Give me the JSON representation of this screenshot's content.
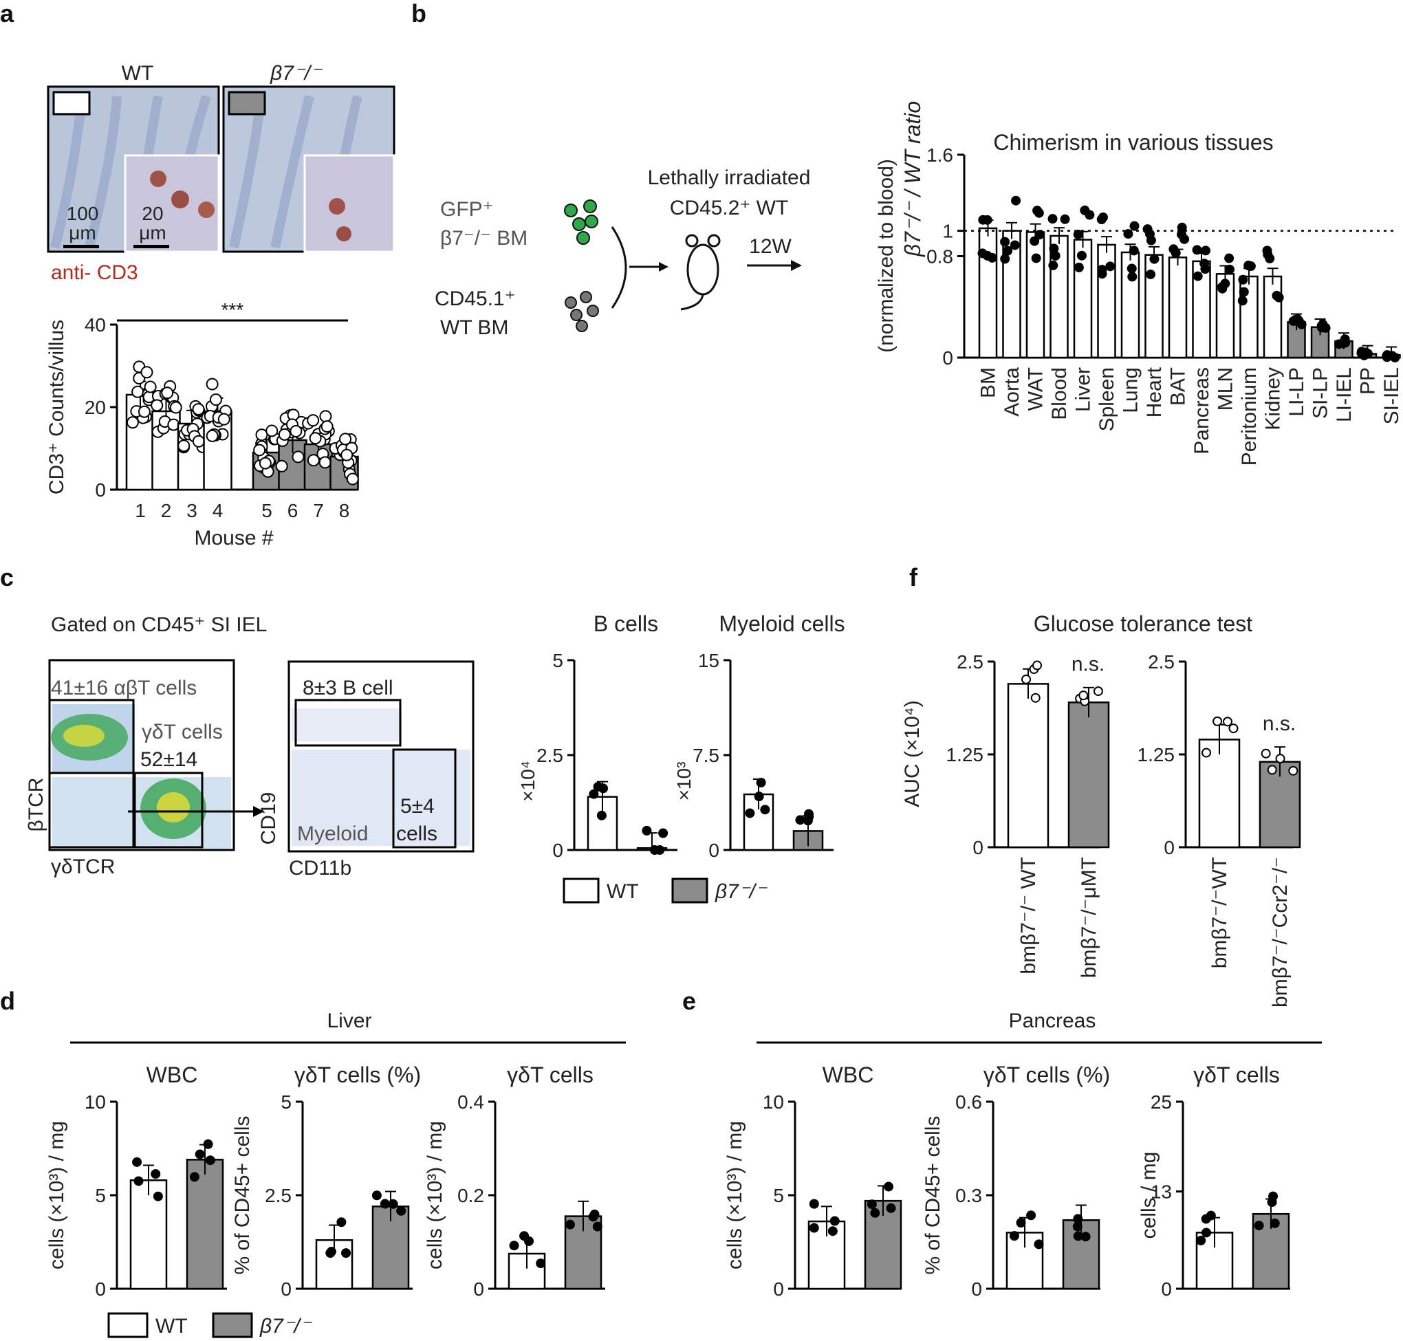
{
  "panels": {
    "a": "a",
    "b": "b",
    "c": "c",
    "d": "d",
    "e": "e",
    "f": "f"
  },
  "colors": {
    "wt": "#ffffff",
    "ko": "#8c8c8c",
    "axis": "#000000",
    "tissue": "#b8c4d8"
  },
  "panel_a": {
    "label_wt": "WT",
    "label_ko": "β7⁻/⁻",
    "scale_100": "100",
    "scale_20": "20",
    "um": "μm",
    "stain": "anti- CD3"
  },
  "panel_b": {
    "gfp": "GFP⁺",
    "b7bm": "β7⁻/⁻ BM",
    "cd451": "CD45.1⁺",
    "wtbm": "WT BM",
    "irradiated1": "Lethally irradiated",
    "irradiated2": "CD45.2⁺ WT",
    "weeks": "12W"
  },
  "panel_c": {
    "gated": "Gated on CD45⁺ SI IEL",
    "ab": "41±16 αβT cells",
    "gd1": "γδT cells",
    "gd2": "52±14",
    "btcr": "βTCR",
    "gdtcr": "γδTCR",
    "bcell": "8±3 B cell",
    "cd19": "CD19",
    "cd11b": "CD11b",
    "myeloid": "Myeloid",
    "pct54": "5±4",
    "cellsword": "cells"
  },
  "legend": {
    "wt": "WT",
    "ko": "β7⁻/⁻"
  },
  "sections": {
    "liver": "Liver",
    "pancreas": "Pancreas"
  },
  "chart_data": [
    {
      "id": "a",
      "type": "bar",
      "xlabel": "Mouse #",
      "ylabel": "CD3⁺ Counts/villus",
      "ylim": [
        0,
        40
      ],
      "yticks": [
        "0",
        "20",
        "40"
      ],
      "categories": [
        "1",
        "2",
        "3",
        "4",
        "5",
        "6",
        "7",
        "8"
      ],
      "values": [
        23,
        19,
        16,
        19,
        9,
        12,
        11,
        8
      ],
      "groups": [
        "WT",
        "WT",
        "WT",
        "WT",
        "β7⁻/⁻",
        "β7⁻/⁻",
        "β7⁻/⁻",
        "β7⁻/⁻"
      ],
      "annotation": "***"
    },
    {
      "id": "b",
      "type": "bar",
      "title": "Chimerism in various tissues",
      "ylabel_top": "β7⁻/⁻ / WT ratio",
      "ylabel_bottom": "(normalized to blood)",
      "ylim": [
        0,
        1.6
      ],
      "yticks": [
        "0",
        "0.8",
        "1",
        "1.6"
      ],
      "categories": [
        "BM",
        "Aorta",
        "WAT",
        "Blood",
        "Liver",
        "Spleen",
        "Lung",
        "Heart",
        "BAT",
        "Pancreas",
        "MLN",
        "Peritonium",
        "Kidney",
        "LI-LP",
        "SI-LP",
        "LI-IEL",
        "PP",
        "SI-IEL"
      ],
      "values": [
        1.02,
        1.0,
        0.99,
        0.96,
        0.93,
        0.89,
        0.83,
        0.81,
        0.79,
        0.76,
        0.66,
        0.64,
        0.64,
        0.28,
        0.24,
        0.13,
        0.03,
        0.02
      ],
      "reference_line": 1
    },
    {
      "id": "c-b",
      "type": "bar",
      "title": "B cells",
      "scale": "×10⁴",
      "ylim": [
        0,
        5
      ],
      "yticks": [
        "0",
        "2.5",
        "5"
      ],
      "categories": [
        "WT",
        "β7⁻/⁻"
      ],
      "values": [
        1.4,
        0.05
      ]
    },
    {
      "id": "c-m",
      "type": "bar",
      "title": "Myeloid cells",
      "scale": "×10³",
      "ylim": [
        0,
        15
      ],
      "yticks": [
        "0",
        "7.5",
        "15"
      ],
      "categories": [
        "WT",
        "β7⁻/⁻"
      ],
      "values": [
        4.4,
        1.5
      ]
    },
    {
      "id": "f1",
      "type": "bar",
      "title": "Glucose tolerance test",
      "ylabel": "AUC (×10⁴)",
      "ylim": [
        0,
        2.5
      ],
      "yticks": [
        "0",
        "1.25",
        "2.5"
      ],
      "categories": [
        "bmβ7⁻/⁻ WT",
        "bmβ7⁻/⁻μMT"
      ],
      "values": [
        2.2,
        1.95
      ],
      "annotation": "n.s."
    },
    {
      "id": "f2",
      "type": "bar",
      "ylim": [
        0,
        2.5
      ],
      "yticks": [
        "0",
        "1.25",
        "2.5"
      ],
      "categories": [
        "bmβ7⁻/⁻WT",
        "bmβ7⁻/⁻Ccr2⁻/⁻"
      ],
      "values": [
        1.45,
        1.15
      ],
      "annotation": "n.s."
    },
    {
      "id": "d1",
      "type": "bar",
      "title": "WBC",
      "ylabel": "cells (×10³) / mg",
      "ylim": [
        0,
        10
      ],
      "yticks": [
        "0",
        "5",
        "10"
      ],
      "categories": [
        "WT",
        "β7⁻/⁻"
      ],
      "values": [
        5.8,
        6.9
      ]
    },
    {
      "id": "d2",
      "type": "bar",
      "title": "γδT cells (%)",
      "ylabel": "% of CD45+ cells",
      "ylim": [
        0,
        5
      ],
      "yticks": [
        "0",
        "2.5",
        "5"
      ],
      "categories": [
        "WT",
        "β7⁻/⁻"
      ],
      "values": [
        1.3,
        2.2
      ]
    },
    {
      "id": "d3",
      "type": "bar",
      "title": "γδT cells",
      "ylabel": "cells (×10³) / mg",
      "ylim": [
        0,
        0.4
      ],
      "yticks": [
        "0",
        "0.2",
        "0.4"
      ],
      "categories": [
        "WT",
        "β7⁻/⁻"
      ],
      "values": [
        0.075,
        0.155
      ]
    },
    {
      "id": "e1",
      "type": "bar",
      "title": "WBC",
      "ylabel": "cells (×10³) / mg",
      "ylim": [
        0,
        10
      ],
      "yticks": [
        "0",
        "5",
        "10"
      ],
      "categories": [
        "WT",
        "β7⁻/⁻"
      ],
      "values": [
        3.6,
        4.7
      ]
    },
    {
      "id": "e2",
      "type": "bar",
      "title": "γδT cells (%)",
      "ylabel": "% of CD45+ cells",
      "ylim": [
        0,
        0.6
      ],
      "yticks": [
        "0",
        "0.3",
        "0.6"
      ],
      "categories": [
        "WT",
        "β7⁻/⁻"
      ],
      "values": [
        0.18,
        0.22
      ]
    },
    {
      "id": "e3",
      "type": "bar",
      "title": "γδT cells",
      "ylabel": "cells / mg",
      "ylim": [
        0,
        25
      ],
      "yticks": [
        "0",
        "13",
        "25"
      ],
      "categories": [
        "WT",
        "β7⁻/⁻"
      ],
      "values": [
        7.5,
        10
      ]
    }
  ]
}
